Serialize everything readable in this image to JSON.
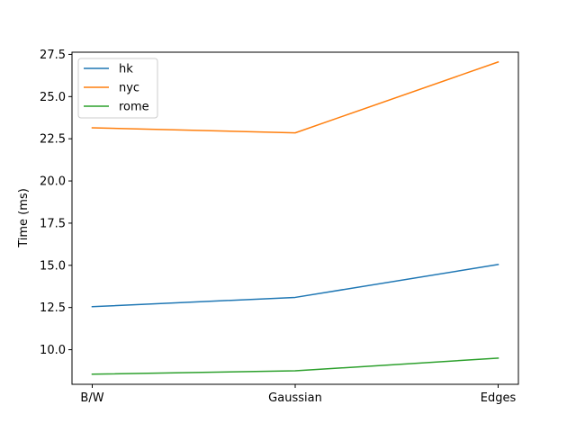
{
  "chart_data": {
    "type": "line",
    "categories": [
      "B/W",
      "Gaussian",
      "Edges"
    ],
    "series": [
      {
        "name": "hk",
        "color": "#1f77b4",
        "values": [
          12.55,
          13.1,
          15.05
        ]
      },
      {
        "name": "nyc",
        "color": "#ff7f0e",
        "values": [
          23.15,
          22.85,
          27.05
        ]
      },
      {
        "name": "rome",
        "color": "#2ca02c",
        "values": [
          8.55,
          8.75,
          9.5
        ]
      }
    ],
    "ylabel": "Time (ms)",
    "xlabel": "",
    "title": "",
    "ylim": [
      7.95,
      27.63
    ],
    "yticks": [
      10.0,
      12.5,
      15.0,
      17.5,
      20.0,
      22.5,
      25.0,
      27.5
    ],
    "ytick_labels": [
      "10.0",
      "12.5",
      "15.0",
      "17.5",
      "20.0",
      "22.5",
      "25.0",
      "27.5"
    ],
    "grid": false,
    "legend_position": "top-left"
  }
}
